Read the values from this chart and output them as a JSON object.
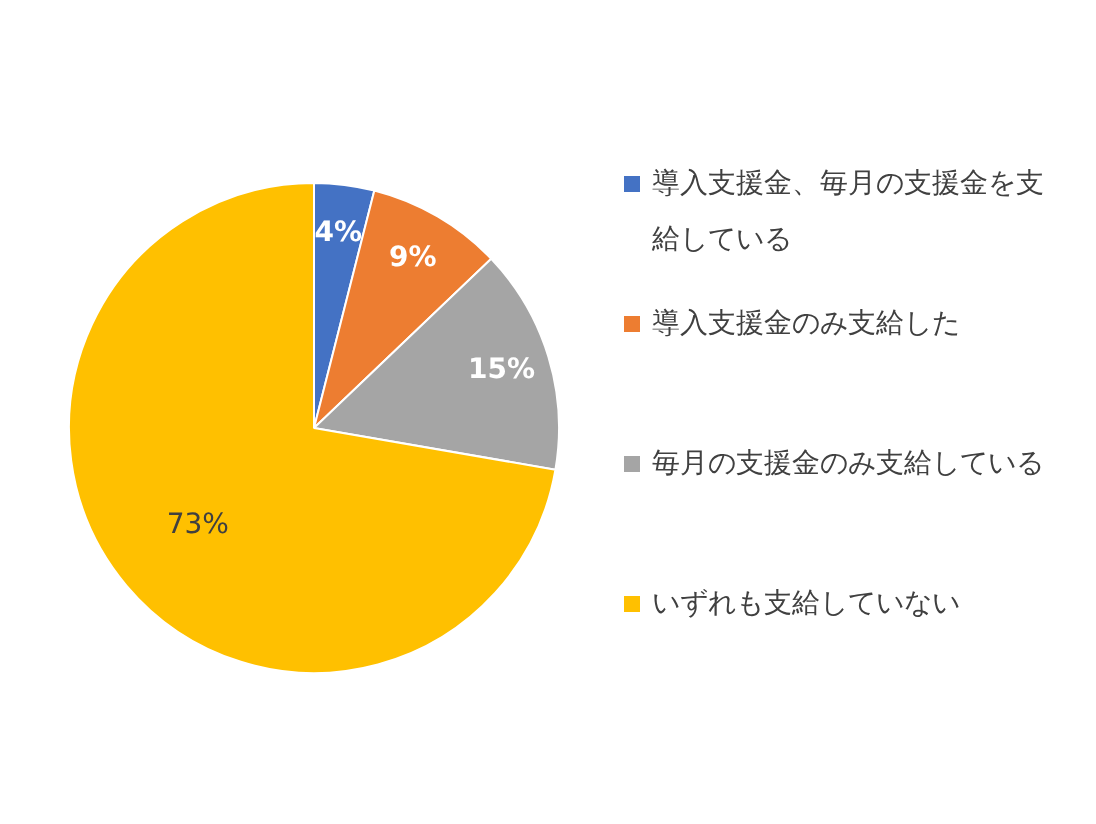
{
  "chart_data": {
    "type": "pie",
    "categories": [
      "導入支援金、毎月の支援金を支給している",
      "導入支援金のみ支給した",
      "毎月の支援金のみ支給している",
      "いずれも支給していない"
    ],
    "values": [
      4,
      9,
      15,
      73
    ],
    "colors": [
      "#4472c4",
      "#ed7d31",
      "#a5a5a5",
      "#ffc000"
    ],
    "value_labels": [
      "4%",
      "9%",
      "15%",
      "73%"
    ],
    "legend": "right"
  }
}
